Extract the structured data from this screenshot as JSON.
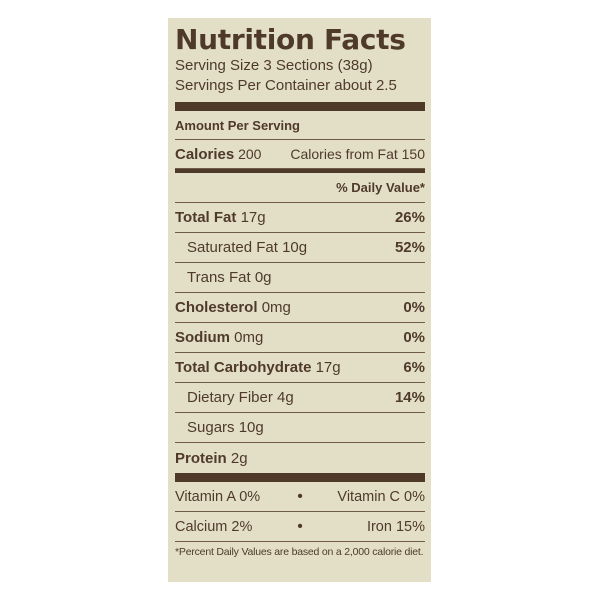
{
  "label": {
    "title": "Nutrition Facts",
    "serving_size": "Serving Size 3 Sections (38g)",
    "servings_per_container": "Servings Per Container about 2.5",
    "amount_per_serving": "Amount Per Serving",
    "calories_label": "Calories",
    "calories_value": "200",
    "calories_from_fat": "Calories from Fat 150",
    "daily_value_header": "% Daily Value*",
    "nutrients": [
      {
        "name": "Total Fat",
        "amount": "17g",
        "dv": "26%"
      },
      {
        "name": "Saturated Fat",
        "amount": "10g",
        "dv": "52%"
      },
      {
        "name": "Trans Fat",
        "amount": "0g",
        "dv": ""
      },
      {
        "name": "Cholesterol",
        "amount": "0mg",
        "dv": "0%"
      },
      {
        "name": "Sodium",
        "amount": "0mg",
        "dv": "0%"
      },
      {
        "name": "Total Carbohydrate",
        "amount": "17g",
        "dv": "6%"
      },
      {
        "name": "Dietary Fiber",
        "amount": "4g",
        "dv": "14%"
      },
      {
        "name": "Sugars",
        "amount": "10g",
        "dv": ""
      },
      {
        "name": "Protein",
        "amount": "2g",
        "dv": ""
      }
    ],
    "vitamins": [
      {
        "left": "Vitamin A 0%",
        "right": "Vitamin C 0%"
      },
      {
        "left": "Calcium 2%",
        "right": "Iron 15%"
      }
    ],
    "bullet": "•",
    "footnote": "*Percent Daily Values are based on a 2,000 calorie diet.",
    "colors": {
      "panel": "#e3dfc7",
      "ink": "#4f3a2a"
    }
  }
}
